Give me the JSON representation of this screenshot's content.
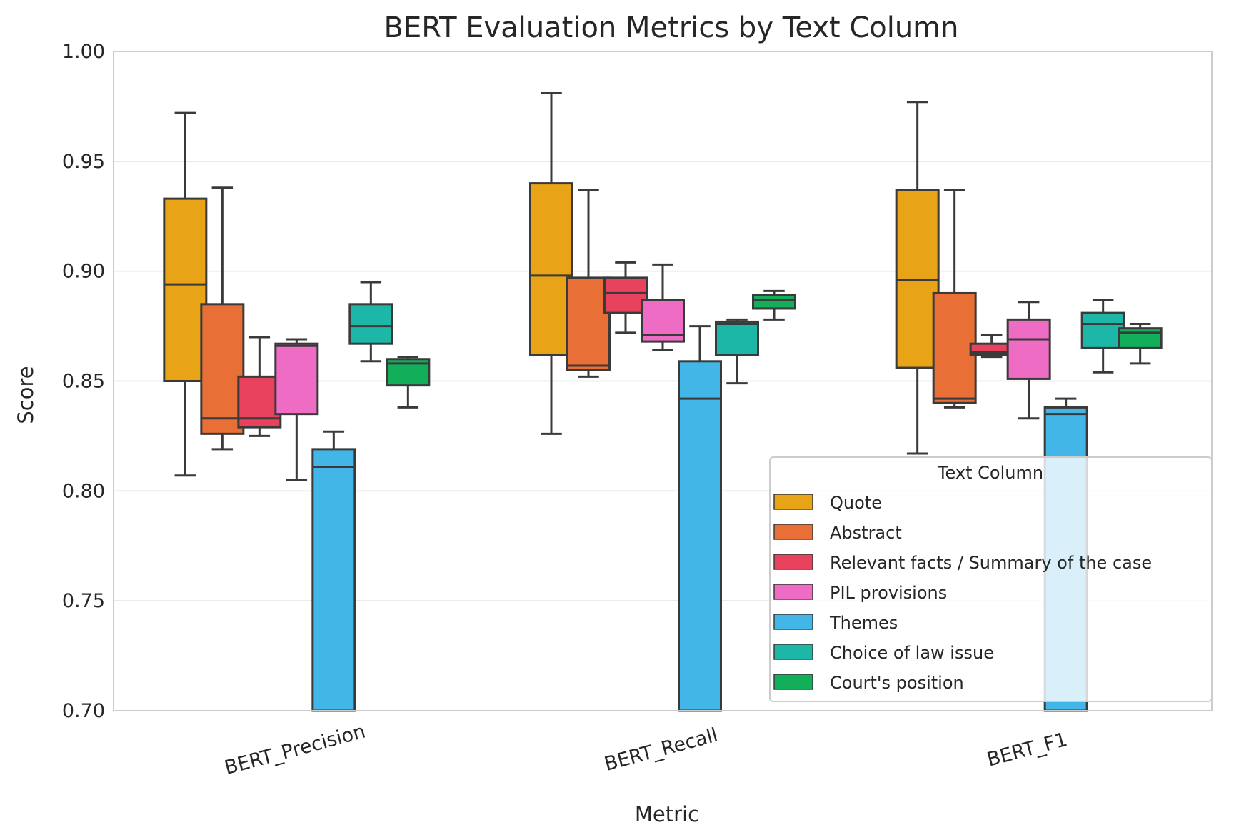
{
  "chart_data": {
    "type": "box",
    "title": "BERT Evaluation Metrics by Text Column",
    "xlabel": "Metric",
    "ylabel": "Score",
    "ylim": [
      0.7,
      1.0
    ],
    "yticks": [
      "0.70",
      "0.75",
      "0.80",
      "0.85",
      "0.90",
      "0.95",
      "1.00"
    ],
    "grid": true,
    "categories": [
      "BERT_Precision",
      "BERT_Recall",
      "BERT_F1"
    ],
    "legend": {
      "title": "Text Column",
      "position": "lower right"
    },
    "series": [
      {
        "name": "Quote",
        "color": "#E8A317",
        "boxes": [
          {
            "whislo": 0.807,
            "q1": 0.85,
            "med": 0.894,
            "q3": 0.933,
            "whishi": 0.972
          },
          {
            "whislo": 0.826,
            "q1": 0.862,
            "med": 0.898,
            "q3": 0.94,
            "whishi": 0.981
          },
          {
            "whislo": 0.817,
            "q1": 0.856,
            "med": 0.896,
            "q3": 0.937,
            "whishi": 0.977
          }
        ]
      },
      {
        "name": "Abstract",
        "color": "#E86F35",
        "boxes": [
          {
            "whislo": 0.819,
            "q1": 0.826,
            "med": 0.833,
            "q3": 0.885,
            "whishi": 0.938
          },
          {
            "whislo": 0.852,
            "q1": 0.855,
            "med": 0.857,
            "q3": 0.897,
            "whishi": 0.937
          },
          {
            "whislo": 0.838,
            "q1": 0.84,
            "med": 0.842,
            "q3": 0.89,
            "whishi": 0.937
          }
        ]
      },
      {
        "name": "Relevant facts / Summary of the case",
        "color": "#E8425F",
        "boxes": [
          {
            "whislo": 0.825,
            "q1": 0.829,
            "med": 0.833,
            "q3": 0.852,
            "whishi": 0.87
          },
          {
            "whislo": 0.872,
            "q1": 0.881,
            "med": 0.89,
            "q3": 0.897,
            "whishi": 0.904
          },
          {
            "whislo": 0.861,
            "q1": 0.862,
            "med": 0.863,
            "q3": 0.867,
            "whishi": 0.871
          }
        ]
      },
      {
        "name": "PIL provisions",
        "color": "#EE6CC4",
        "boxes": [
          {
            "whislo": 0.805,
            "q1": 0.835,
            "med": 0.866,
            "q3": 0.867,
            "whishi": 0.869
          },
          {
            "whislo": 0.864,
            "q1": 0.868,
            "med": 0.871,
            "q3": 0.887,
            "whishi": 0.903
          },
          {
            "whislo": 0.833,
            "q1": 0.851,
            "med": 0.869,
            "q3": 0.878,
            "whishi": 0.886
          }
        ]
      },
      {
        "name": "Themes",
        "color": "#43B6E8",
        "boxes": [
          {
            "whislo": 0.7,
            "q1": 0.7,
            "med": 0.811,
            "q3": 0.819,
            "whishi": 0.827
          },
          {
            "whislo": 0.7,
            "q1": 0.7,
            "med": 0.842,
            "q3": 0.859,
            "whishi": 0.875
          },
          {
            "whislo": 0.7,
            "q1": 0.7,
            "med": 0.835,
            "q3": 0.838,
            "whishi": 0.842
          }
        ]
      },
      {
        "name": "Choice of law issue",
        "color": "#1DB7A8",
        "boxes": [
          {
            "whislo": 0.859,
            "q1": 0.867,
            "med": 0.875,
            "q3": 0.885,
            "whishi": 0.895
          },
          {
            "whislo": 0.849,
            "q1": 0.862,
            "med": 0.876,
            "q3": 0.877,
            "whishi": 0.878
          },
          {
            "whislo": 0.854,
            "q1": 0.865,
            "med": 0.876,
            "q3": 0.881,
            "whishi": 0.887
          }
        ]
      },
      {
        "name": "Court's position",
        "color": "#12AE5A",
        "boxes": [
          {
            "whislo": 0.838,
            "q1": 0.848,
            "med": 0.858,
            "q3": 0.86,
            "whishi": 0.861
          },
          {
            "whislo": 0.878,
            "q1": 0.883,
            "med": 0.887,
            "q3": 0.889,
            "whishi": 0.891
          },
          {
            "whislo": 0.858,
            "q1": 0.865,
            "med": 0.872,
            "q3": 0.874,
            "whishi": 0.876
          }
        ]
      }
    ]
  }
}
